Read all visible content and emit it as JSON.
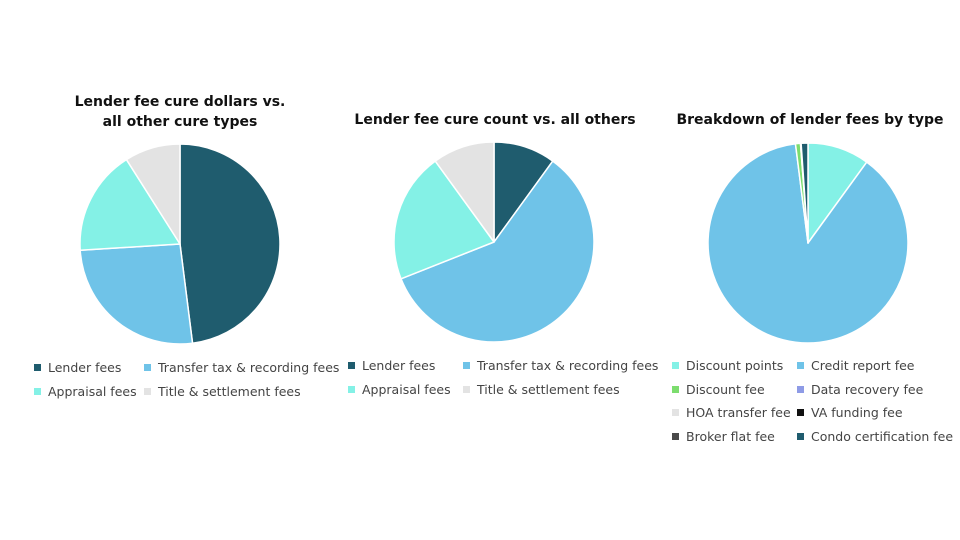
{
  "chart_data": [
    {
      "type": "pie",
      "title_lines": [
        "Lender fee cure dollars vs.",
        "all other cure types"
      ],
      "slices": [
        {
          "label": "Lender fees",
          "value": 48,
          "color": "#1F5C6E"
        },
        {
          "label": "Transfer tax & recording fees",
          "value": 26,
          "color": "#6FC3E8"
        },
        {
          "label": "Appraisal fees",
          "value": 17,
          "color": "#84F1E6"
        },
        {
          "label": "Title & settlement fees",
          "value": 9,
          "color": "#E3E3E3"
        }
      ],
      "legend_columns": 2
    },
    {
      "type": "pie",
      "title_lines": [
        "Lender fee cure count vs. all others"
      ],
      "slices": [
        {
          "label": "Lender fees",
          "value": 10,
          "color": "#1F5C6E"
        },
        {
          "label": "Transfer tax & recording fees",
          "value": 59,
          "color": "#6FC3E8"
        },
        {
          "label": "Appraisal fees",
          "value": 21,
          "color": "#84F1E6"
        },
        {
          "label": "Title & settlement fees",
          "value": 10,
          "color": "#E3E3E3"
        }
      ],
      "legend_columns": 2
    },
    {
      "type": "pie",
      "title_lines": [
        "Breakdown of lender fees by type"
      ],
      "slices": [
        {
          "label": "Discount points",
          "value": 10,
          "color": "#84F1E6"
        },
        {
          "label": "Credit report fee",
          "value": 88,
          "color": "#6FC3E8"
        },
        {
          "label": "Discount fee",
          "value": 0.8,
          "color": "#7CDD6E"
        },
        {
          "label": "Data recovery fee",
          "value": 0.1,
          "color": "#8E9BE6"
        },
        {
          "label": "HOA transfer fee",
          "value": 0,
          "color": "#E3E3E3"
        },
        {
          "label": "VA funding fee",
          "value": 0,
          "color": "#111111"
        },
        {
          "label": "Broker flat fee",
          "value": 0,
          "color": "#4A4A4A"
        },
        {
          "label": "Condo certification fee",
          "value": 1.1,
          "color": "#1F5C6E"
        }
      ],
      "legend_columns": 2
    }
  ]
}
